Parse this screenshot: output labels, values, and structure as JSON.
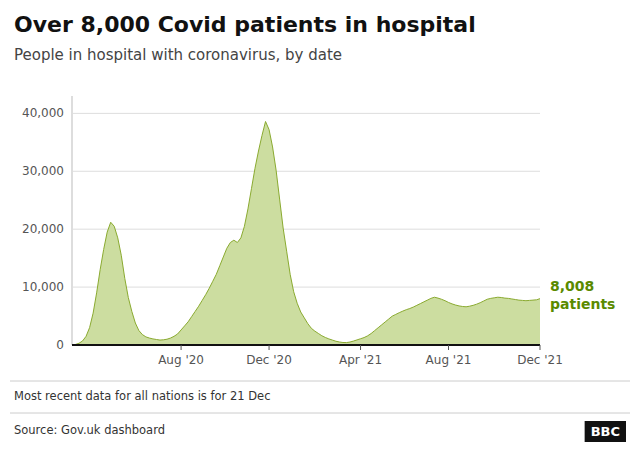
{
  "chart_data": {
    "type": "area",
    "title": "Over 8,000 Covid patients in hospital",
    "subtitle": "People in hospital with coronavirus, by date",
    "annotations": [
      "8,008",
      "patients"
    ],
    "footer_note": "Most recent data for all nations is for 21 Dec",
    "source": "Source: Gov.uk dashboard",
    "logo": "BBC",
    "color": "#ccdda0",
    "grid": true,
    "ylim": [
      0,
      43000
    ],
    "yticks": [
      0,
      {
        "value": 10000,
        "label": "10,000"
      },
      {
        "value": 20000,
        "label": "20,000"
      },
      {
        "value": 30000,
        "label": "30,000"
      },
      {
        "value": 40000,
        "label": "40,000"
      }
    ],
    "categories": [
      null,
      null,
      null,
      null,
      null,
      null,
      null,
      null,
      null,
      null,
      null,
      null,
      null,
      null,
      null,
      null,
      null,
      null,
      null,
      null,
      null,
      null,
      null,
      null,
      null,
      null,
      null,
      null,
      null,
      null,
      null,
      "Aug '20",
      null,
      null,
      null,
      null,
      null,
      null,
      null,
      null,
      null,
      null,
      null,
      null,
      null,
      null,
      null,
      null,
      null,
      null,
      null,
      null,
      null,
      null,
      null,
      null,
      "Dec '20",
      null,
      null,
      null,
      null,
      null,
      null,
      null,
      null,
      null,
      null,
      null,
      null,
      null,
      null,
      null,
      null,
      null,
      null,
      null,
      null,
      null,
      null,
      null,
      null,
      null,
      "Apr '21",
      null,
      null,
      null,
      null,
      null,
      null,
      null,
      null,
      null,
      null,
      null,
      null,
      null,
      null,
      null,
      null,
      null,
      null,
      null,
      null,
      null,
      null,
      null,
      null,
      "Aug '21",
      null,
      null,
      null,
      null,
      null,
      null,
      null,
      null,
      null,
      null,
      null,
      null,
      null,
      null,
      null,
      null,
      null,
      null,
      null,
      null,
      null,
      null,
      null,
      null,
      null,
      "Dec '21"
    ],
    "values": [
      0,
      100,
      300,
      700,
      1500,
      3000,
      5500,
      9000,
      13000,
      16500,
      19500,
      21200,
      20500,
      18500,
      15500,
      11500,
      8200,
      5800,
      3800,
      2500,
      1800,
      1400,
      1200,
      1050,
      950,
      850,
      900,
      1000,
      1200,
      1500,
      1900,
      2600,
      3300,
      4000,
      4900,
      5800,
      6700,
      7700,
      8700,
      9800,
      11000,
      12200,
      13700,
      15200,
      16700,
      17700,
      18100,
      17700,
      18500,
      20500,
      23500,
      27000,
      30500,
      33500,
      36200,
      38600,
      37200,
      34200,
      30200,
      25200,
      20200,
      16200,
      12200,
      9200,
      7200,
      5700,
      4700,
      3700,
      2900,
      2400,
      2000,
      1600,
      1300,
      1050,
      850,
      650,
      520,
      430,
      420,
      510,
      680,
      880,
      1080,
      1280,
      1580,
      1980,
      2480,
      2980,
      3480,
      3980,
      4480,
      4980,
      5280,
      5580,
      5850,
      6100,
      6300,
      6550,
      6850,
      7150,
      7450,
      7750,
      8050,
      8250,
      8100,
      7900,
      7650,
      7350,
      7100,
      6900,
      6750,
      6650,
      6600,
      6700,
      6850,
      7050,
      7300,
      7600,
      7900,
      8050,
      8150,
      8250,
      8200,
      8100,
      8050,
      7950,
      7850,
      7750,
      7700,
      7650,
      7700,
      7750,
      7800,
      8008
    ]
  }
}
